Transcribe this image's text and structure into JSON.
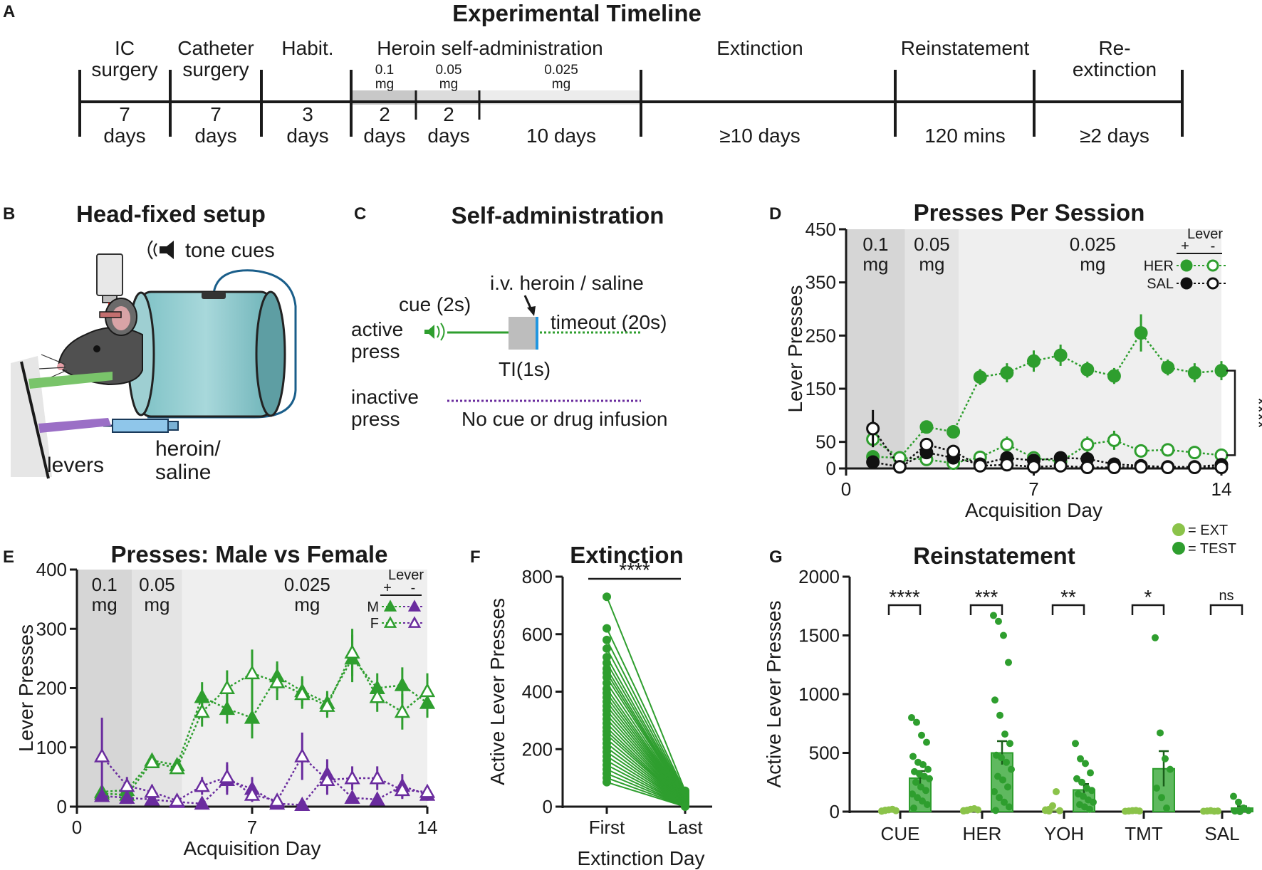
{
  "panels": {
    "a": {
      "letter": "A",
      "title": "Experimental Timeline",
      "phases": [
        "IC",
        "surgery",
        "Catheter",
        "surgery",
        "Habit.",
        "Heroin self-administration",
        "Extinction",
        "Reinstatement",
        "Re-",
        "extinction"
      ],
      "doses": [
        "0.1",
        "mg",
        "0.05",
        "mg",
        "0.025",
        "mg"
      ],
      "durations": [
        "7",
        "days",
        "7",
        "days",
        "3",
        "days",
        "2",
        "days",
        "2",
        "days",
        "10 days",
        "≥10 days",
        "120 mins",
        "≥2 days"
      ]
    },
    "b": {
      "letter": "B",
      "title": "Head-fixed setup",
      "labels": [
        "tone cues",
        "levers",
        "heroin/",
        "saline"
      ]
    },
    "c": {
      "letter": "C",
      "title": "Self-administration",
      "labels": [
        "i.v. heroin / saline",
        "cue (2s)",
        "active",
        "press",
        "timeout (20s)",
        "TI(1s)",
        "inactive",
        "press",
        "No cue or drug infusion"
      ]
    },
    "d": {
      "letter": "D",
      "title": "Presses Per Session"
    },
    "e": {
      "letter": "E",
      "title": "Presses: Male vs Female"
    },
    "f": {
      "letter": "F",
      "title": "Extinction"
    },
    "g": {
      "letter": "G",
      "title": "Reinstatement"
    }
  },
  "chart_data": [
    {
      "panel": "D",
      "type": "line",
      "title": "Presses Per Session",
      "xlabel": "Acquisition Day",
      "ylabel": "Lever Presses",
      "xlim": [
        0,
        14
      ],
      "ylim": [
        0,
        450
      ],
      "xticks": [
        0,
        7,
        14
      ],
      "yticks": [
        0,
        50,
        150,
        250,
        350,
        450
      ],
      "dose_bands": [
        {
          "label": [
            "0.1",
            "mg"
          ],
          "x": [
            0,
            2.2
          ],
          "color": "#d6d6d6"
        },
        {
          "label": [
            "0.05",
            "mg"
          ],
          "x": [
            2.2,
            4.2
          ],
          "color": "#e4e4e4"
        },
        {
          "label": [
            "0.025",
            "mg"
          ],
          "x": [
            4.2,
            14
          ],
          "color": "#efefef"
        }
      ],
      "legend": {
        "header": "Lever",
        "plus": "+",
        "minus": "-",
        "rows": [
          "HER",
          "SAL"
        ]
      },
      "significance": "****",
      "series": [
        {
          "name": "HER +",
          "color": "#2e9e2e",
          "filled": true,
          "x": [
            1,
            2,
            3,
            4,
            5,
            6,
            7,
            8,
            9,
            10,
            11,
            12,
            13,
            14
          ],
          "values": [
            22,
            20,
            78,
            69,
            172,
            180,
            202,
            213,
            186,
            174,
            255,
            190,
            180,
            184
          ],
          "err": [
            10,
            8,
            6,
            6,
            15,
            18,
            20,
            20,
            15,
            15,
            35,
            15,
            18,
            18
          ]
        },
        {
          "name": "HER -",
          "color": "#2e9e2e",
          "filled": false,
          "x": [
            1,
            2,
            3,
            4,
            5,
            6,
            7,
            8,
            9,
            10,
            11,
            12,
            13,
            14
          ],
          "values": [
            55,
            20,
            17,
            10,
            21,
            45,
            20,
            13,
            45,
            53,
            33,
            35,
            30,
            25
          ],
          "err": [
            15,
            8,
            8,
            6,
            10,
            15,
            10,
            8,
            15,
            18,
            12,
            12,
            10,
            8
          ]
        },
        {
          "name": "SAL +",
          "color": "#111111",
          "filled": true,
          "x": [
            1,
            2,
            3,
            4,
            5,
            6,
            7,
            8,
            9,
            10,
            11,
            12,
            13,
            14
          ],
          "values": [
            12,
            3,
            30,
            20,
            8,
            20,
            15,
            20,
            18,
            8,
            5,
            3,
            3,
            7
          ],
          "err": [
            8,
            3,
            8,
            8,
            5,
            8,
            6,
            8,
            8,
            4,
            3,
            2,
            2,
            4
          ]
        },
        {
          "name": "SAL -",
          "color": "#111111",
          "filled": false,
          "x": [
            1,
            2,
            3,
            4,
            5,
            6,
            7,
            8,
            9,
            10,
            11,
            12,
            13,
            14
          ],
          "values": [
            75,
            3,
            45,
            32,
            5,
            7,
            3,
            5,
            2,
            2,
            3,
            2,
            2,
            2
          ],
          "err": [
            35,
            3,
            10,
            12,
            3,
            4,
            2,
            3,
            1,
            1,
            2,
            1,
            1,
            1
          ]
        }
      ]
    },
    {
      "panel": "E",
      "type": "line",
      "title": "Presses: Male vs Female",
      "xlabel": "Acquisition Day",
      "ylabel": "Lever Presses",
      "xlim": [
        0,
        14
      ],
      "ylim": [
        0,
        400
      ],
      "xticks": [
        0,
        7,
        14
      ],
      "yticks": [
        0,
        100,
        200,
        300,
        400
      ],
      "dose_bands": [
        {
          "label": [
            "0.1",
            "mg"
          ],
          "x": [
            0,
            2.2
          ],
          "color": "#d6d6d6"
        },
        {
          "label": [
            "0.05",
            "mg"
          ],
          "x": [
            2.2,
            4.2
          ],
          "color": "#e4e4e4"
        },
        {
          "label": [
            "0.025",
            "mg"
          ],
          "x": [
            4.2,
            14
          ],
          "color": "#efefef"
        }
      ],
      "legend": {
        "header": "Lever",
        "plus": "+",
        "minus": "-",
        "rows": [
          "M",
          "F"
        ]
      },
      "series": [
        {
          "name": "M +",
          "color": "#2e9e2e",
          "filled": true,
          "x": [
            1,
            2,
            3,
            4,
            5,
            6,
            7,
            8,
            9,
            10,
            11,
            12,
            13,
            14
          ],
          "values": [
            25,
            28,
            78,
            70,
            185,
            165,
            150,
            220,
            195,
            175,
            250,
            200,
            205,
            175
          ],
          "err": [
            10,
            10,
            8,
            8,
            25,
            25,
            35,
            25,
            25,
            20,
            40,
            25,
            30,
            25
          ]
        },
        {
          "name": "F +",
          "color": "#2e9e2e",
          "filled": false,
          "x": [
            1,
            2,
            3,
            4,
            5,
            6,
            7,
            8,
            9,
            10,
            11,
            12,
            13,
            14
          ],
          "values": [
            22,
            20,
            75,
            65,
            160,
            200,
            225,
            210,
            190,
            170,
            260,
            185,
            160,
            195
          ],
          "err": [
            8,
            8,
            8,
            8,
            25,
            30,
            40,
            30,
            25,
            20,
            40,
            25,
            30,
            30
          ]
        },
        {
          "name": "M -",
          "color": "#6a2c9e",
          "filled": true,
          "x": [
            1,
            2,
            3,
            4,
            5,
            6,
            7,
            8,
            9,
            10,
            11,
            12,
            13,
            14
          ],
          "values": [
            18,
            15,
            12,
            8,
            5,
            45,
            30,
            5,
            3,
            55,
            15,
            12,
            35,
            20
          ],
          "err": [
            8,
            8,
            6,
            4,
            3,
            25,
            20,
            3,
            2,
            25,
            8,
            6,
            20,
            10
          ]
        },
        {
          "name": "F -",
          "color": "#6a2c9e",
          "filled": false,
          "x": [
            1,
            2,
            3,
            4,
            5,
            6,
            7,
            8,
            9,
            10,
            11,
            12,
            13,
            14
          ],
          "values": [
            85,
            35,
            25,
            10,
            35,
            50,
            20,
            10,
            85,
            45,
            48,
            48,
            28,
            25
          ],
          "err": [
            65,
            15,
            12,
            5,
            15,
            25,
            12,
            5,
            40,
            25,
            20,
            20,
            15,
            10
          ]
        }
      ]
    },
    {
      "panel": "F",
      "type": "line",
      "title": "Extinction",
      "xlabel": "Extinction Day",
      "ylabel": "Active Lever Presses",
      "categories": [
        "First",
        "Last"
      ],
      "ylim": [
        0,
        800
      ],
      "yticks": [
        0,
        200,
        400,
        600,
        800
      ],
      "significance": "****",
      "color": "#2e9e2e",
      "first": [
        730,
        620,
        580,
        550,
        520,
        500,
        480,
        465,
        450,
        430,
        410,
        395,
        380,
        365,
        350,
        335,
        320,
        305,
        290,
        275,
        262,
        250,
        235,
        220,
        205,
        190,
        175,
        160,
        145,
        130,
        115,
        100,
        85
      ],
      "last": [
        55,
        50,
        45,
        40,
        38,
        35,
        32,
        30,
        28,
        25,
        24,
        22,
        20,
        18,
        17,
        15,
        14,
        12,
        11,
        10,
        9,
        8,
        7,
        6,
        5,
        5,
        4,
        3,
        3,
        2,
        2,
        1,
        0
      ]
    },
    {
      "panel": "G",
      "type": "bar",
      "title": "Reinstatement",
      "ylabel": "Active Lever Presses",
      "categories": [
        "CUE",
        "HER",
        "YOH",
        "TMT",
        "SAL"
      ],
      "ylim": [
        0,
        2000
      ],
      "yticks": [
        0,
        500,
        1000,
        1500,
        2000
      ],
      "legend": [
        "= EXT",
        "= TEST"
      ],
      "significance": [
        "****",
        "***",
        "**",
        "*",
        "ns"
      ],
      "series": [
        {
          "name": "EXT",
          "color": "#8bc34a",
          "values": [
            10,
            15,
            20,
            8,
            5
          ],
          "points": [
            [
              5,
              10,
              15,
              20,
              8,
              3,
              12
            ],
            [
              5,
              10,
              20,
              25,
              15,
              8,
              12
            ],
            [
              10,
              20,
              50,
              170,
              8,
              15,
              5
            ],
            [
              3,
              5,
              8,
              10,
              5
            ],
            [
              3,
              5,
              8,
              3,
              5
            ]
          ]
        },
        {
          "name": "TEST",
          "color": "#2e9e2e",
          "values": [
            285,
            500,
            185,
            365,
            30
          ],
          "err": [
            60,
            100,
            50,
            150,
            15
          ],
          "points": [
            [
              800,
              760,
              650,
              590,
              470,
              420,
              400,
              360,
              340,
              320,
              300,
              280,
              250,
              210,
              180,
              150,
              120,
              90,
              60,
              30
            ],
            [
              1670,
              1620,
              1500,
              1270,
              950,
              820,
              660,
              580,
              480,
              460,
              420,
              360,
              300,
              270,
              210,
              170,
              120,
              80,
              40,
              10
            ],
            [
              580,
              450,
              410,
              330,
              280,
              250,
              200,
              180,
              150,
              130,
              100,
              80,
              60,
              40,
              20
            ],
            [
              1480,
              670,
              450,
              360,
              200,
              120,
              30
            ],
            [
              130,
              80,
              30,
              10,
              5,
              0
            ]
          ]
        }
      ]
    }
  ]
}
